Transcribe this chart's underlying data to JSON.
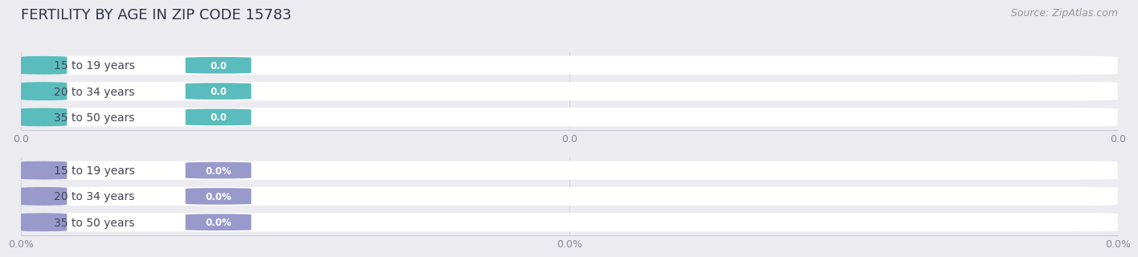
{
  "title": "FERTILITY BY AGE IN ZIP CODE 15783",
  "source": "Source: ZipAtlas.com",
  "background_color": "#ebebf0",
  "top_section": {
    "categories": [
      "15 to 19 years",
      "20 to 34 years",
      "35 to 50 years"
    ],
    "values": [
      0.0,
      0.0,
      0.0
    ],
    "pill_color": "#5abcbc",
    "pill_light": "#e8e8f0",
    "value_suffix": "",
    "x_tick_labels": [
      "0.0",
      "0.0",
      "0.0"
    ]
  },
  "bottom_section": {
    "categories": [
      "15 to 19 years",
      "20 to 34 years",
      "35 to 50 years"
    ],
    "values": [
      0.0,
      0.0,
      0.0
    ],
    "pill_color": "#9999cc",
    "pill_light": "#e8e8f0",
    "value_suffix": "%",
    "x_tick_labels": [
      "0.0%",
      "0.0%",
      "0.0%"
    ]
  },
  "x_tick_positions": [
    0.0,
    0.5,
    1.0
  ],
  "title_fontsize": 13,
  "tick_fontsize": 9,
  "source_fontsize": 9,
  "label_fontsize": 10
}
